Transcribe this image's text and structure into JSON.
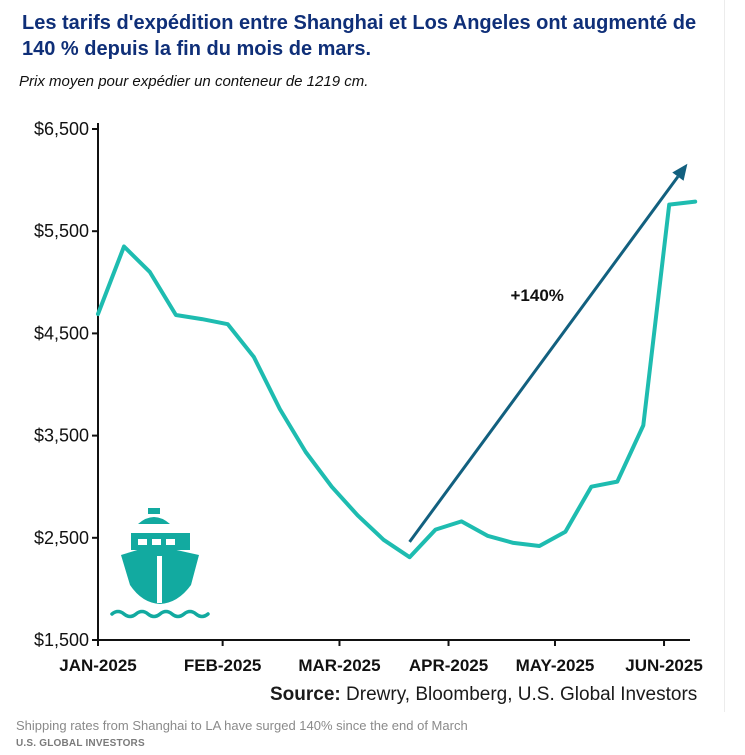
{
  "header": {
    "title": "Les tarifs d'expédition entre Shanghai et Los Angeles ont augmenté de 140 % depuis la fin du mois de mars.",
    "subtitle": "Prix moyen pour expédier un conteneur de 1219 cm."
  },
  "source": {
    "label": "Source:",
    "text": " Drewry, Bloomberg, U.S. Global Investors"
  },
  "footer": {
    "caption": "Shipping rates from Shanghai to LA have surged 140% since the end of March",
    "brand": "U.S. GLOBAL INVESTORS"
  },
  "colors": {
    "line": "#1ebcb0",
    "arrow": "#12607f",
    "title": "#0f2f78",
    "ship": "#12aaa0"
  },
  "chart_data": {
    "type": "line",
    "title": "Les tarifs d'expédition entre Shanghai et Los Angeles ont augmenté de 140 % depuis la fin du mois de mars.",
    "subtitle": "Prix moyen pour expédier un conteneur de 1219 cm.",
    "xlabel": "",
    "ylabel": "",
    "ylim": [
      1500,
      6500
    ],
    "xlim": [
      0,
      22.8
    ],
    "y_ticks": [
      1500,
      2500,
      3500,
      4500,
      5500,
      6500
    ],
    "y_tick_labels": [
      "$1,500",
      "$2,500",
      "$3,500",
      "$4,500",
      "$5,500",
      "$6,500"
    ],
    "x_ticks": [
      0,
      4.8,
      9.3,
      13.5,
      17.6,
      21.8
    ],
    "x_tick_labels": [
      "JAN-2025",
      "FEB-2025",
      "MAR-2025",
      "APR-2025",
      "MAY-2025",
      "JUN-2025"
    ],
    "grid": false,
    "series": [
      {
        "name": "Shanghai - Los Angeles",
        "x": [
          0,
          1,
          2,
          3,
          4,
          5,
          6,
          7,
          8,
          9,
          10,
          11,
          12,
          13,
          14,
          15,
          16,
          17,
          18,
          19,
          20,
          21,
          22,
          23
        ],
        "values": [
          4690,
          5350,
          5100,
          4680,
          4640,
          4590,
          4270,
          3760,
          3340,
          3000,
          2720,
          2480,
          2310,
          2580,
          2660,
          2520,
          2450,
          2420,
          2560,
          3000,
          3050,
          3600,
          5760,
          5790
        ]
      }
    ],
    "annotations": [
      {
        "text": "+140%",
        "arrow_from": [
          12,
          2460
        ],
        "arrow_to": [
          22.7,
          6160
        ]
      }
    ]
  }
}
